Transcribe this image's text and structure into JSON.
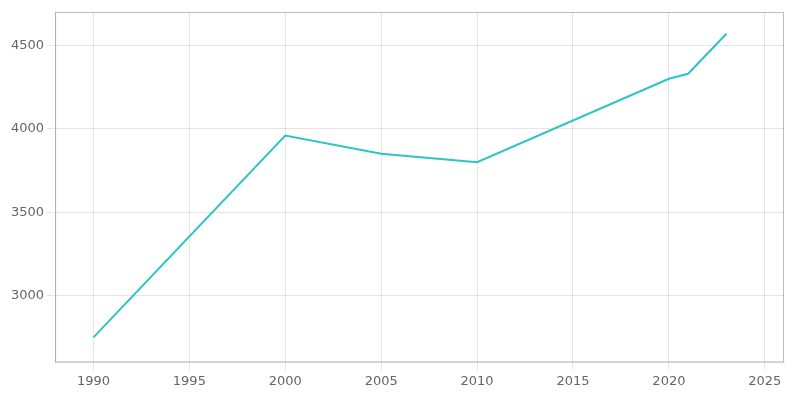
{
  "chart_data": {
    "type": "line",
    "x": [
      1990,
      2000,
      2005,
      2010,
      2020,
      2021,
      2022,
      2023
    ],
    "values": [
      2750,
      3960,
      3850,
      3800,
      4300,
      4330,
      4450,
      4570
    ],
    "color": "#2EC4C4",
    "xlim": [
      1988,
      2026
    ],
    "xticks": [
      1990,
      1995,
      2000,
      2005,
      2010,
      2015,
      2020,
      2025
    ],
    "ylim": [
      2600,
      4700
    ],
    "yticks": [
      3000,
      3500,
      4000,
      4500
    ],
    "grid": true
  }
}
